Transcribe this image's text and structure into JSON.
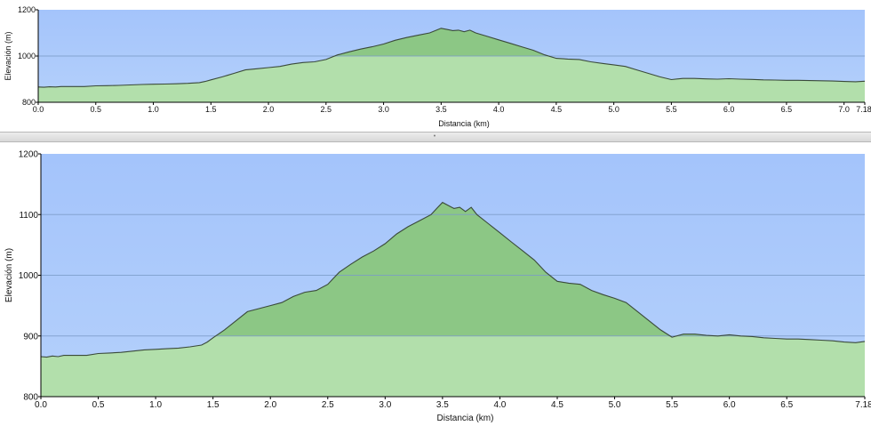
{
  "colors": {
    "sky": "#a4c4fb",
    "sky_bottom": "#b4d0fb",
    "area_upper": "#8cc785",
    "area_lower": "#b2dfab",
    "line": "#3a4a3a",
    "grid": "#7a9ac8"
  },
  "splitter": {
    "grip_icon": "drag-handle-icon"
  },
  "chart_data": [
    {
      "type": "area",
      "name": "overview",
      "xlabel": "Distancia   (km)",
      "ylabel": "Elevación (m)",
      "xlim": [
        0,
        7.18
      ],
      "ylim": [
        800,
        1200
      ],
      "xticks": [
        "0.0",
        "0.5",
        "1.0",
        "1.5",
        "2.0",
        "2.5",
        "3.0",
        "3.5",
        "4.0",
        "4.5",
        "5.0",
        "5.5",
        "6.0",
        "6.5",
        "7.0"
      ],
      "xtick_end": "7.18",
      "yticks": [
        "800",
        "1000",
        "1200"
      ],
      "grid": "horizontal",
      "grid_values": [
        1000
      ]
    },
    {
      "type": "area",
      "name": "detail",
      "xlabel": "Distancia   (km)",
      "ylabel": "Elevación (m)",
      "xlim": [
        0,
        7.18
      ],
      "ylim": [
        800,
        1200
      ],
      "xticks": [
        "0.0",
        "0.5",
        "1.0",
        "1.5",
        "2.0",
        "2.5",
        "3.0",
        "3.5",
        "4.0",
        "4.5",
        "5.0",
        "5.5",
        "6.0",
        "6.5"
      ],
      "xtick_end": "7.18",
      "yticks": [
        "800",
        "900",
        "1000",
        "1100",
        "1200"
      ],
      "grid": "horizontal",
      "grid_values": [
        900,
        1000,
        1100
      ]
    }
  ],
  "profile": {
    "x": [
      0.0,
      0.05,
      0.1,
      0.15,
      0.2,
      0.3,
      0.4,
      0.5,
      0.6,
      0.7,
      0.8,
      0.9,
      1.0,
      1.1,
      1.2,
      1.3,
      1.4,
      1.45,
      1.5,
      1.6,
      1.7,
      1.8,
      1.9,
      2.0,
      2.1,
      2.2,
      2.3,
      2.4,
      2.5,
      2.55,
      2.6,
      2.7,
      2.8,
      2.9,
      3.0,
      3.1,
      3.2,
      3.3,
      3.4,
      3.45,
      3.5,
      3.55,
      3.6,
      3.65,
      3.7,
      3.75,
      3.8,
      3.9,
      4.0,
      4.1,
      4.2,
      4.3,
      4.4,
      4.5,
      4.6,
      4.7,
      4.8,
      4.9,
      5.0,
      5.1,
      5.2,
      5.3,
      5.4,
      5.5,
      5.6,
      5.7,
      5.8,
      5.9,
      6.0,
      6.1,
      6.2,
      6.3,
      6.4,
      6.5,
      6.6,
      6.7,
      6.8,
      6.9,
      7.0,
      7.1,
      7.18
    ],
    "elevation": [
      866,
      865,
      867,
      866,
      868,
      868,
      868,
      871,
      872,
      873,
      875,
      877,
      878,
      879,
      880,
      882,
      885,
      890,
      897,
      910,
      925,
      940,
      945,
      950,
      955,
      965,
      972,
      975,
      985,
      995,
      1005,
      1018,
      1030,
      1040,
      1052,
      1068,
      1080,
      1090,
      1100,
      1110,
      1120,
      1115,
      1110,
      1112,
      1105,
      1112,
      1100,
      1085,
      1070,
      1055,
      1040,
      1025,
      1005,
      990,
      987,
      985,
      975,
      968,
      962,
      955,
      940,
      925,
      910,
      898,
      903,
      903,
      901,
      900,
      902,
      900,
      899,
      897,
      896,
      895,
      895,
      894,
      893,
      892,
      890,
      889,
      891
    ]
  }
}
